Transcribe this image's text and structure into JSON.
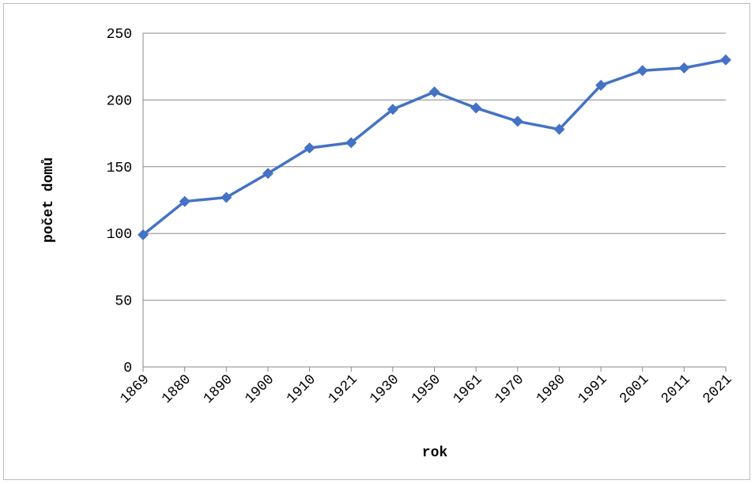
{
  "chart_data": {
    "type": "line",
    "categories": [
      "1869",
      "1880",
      "1890",
      "1900",
      "1910",
      "1921",
      "1930",
      "1950",
      "1961",
      "1970",
      "1980",
      "1991",
      "2001",
      "2011",
      "2021"
    ],
    "series": [
      {
        "name": "počet domů",
        "color": "#4472c4",
        "values": [
          99,
          124,
          127,
          145,
          164,
          168,
          193,
          206,
          194,
          184,
          178,
          211,
          222,
          224,
          230
        ]
      }
    ],
    "ylim": [
      0,
      250
    ],
    "yticks": [
      0,
      50,
      100,
      150,
      200,
      250
    ],
    "grid": true,
    "xlabel": "rok",
    "ylabel": "počet domů"
  }
}
